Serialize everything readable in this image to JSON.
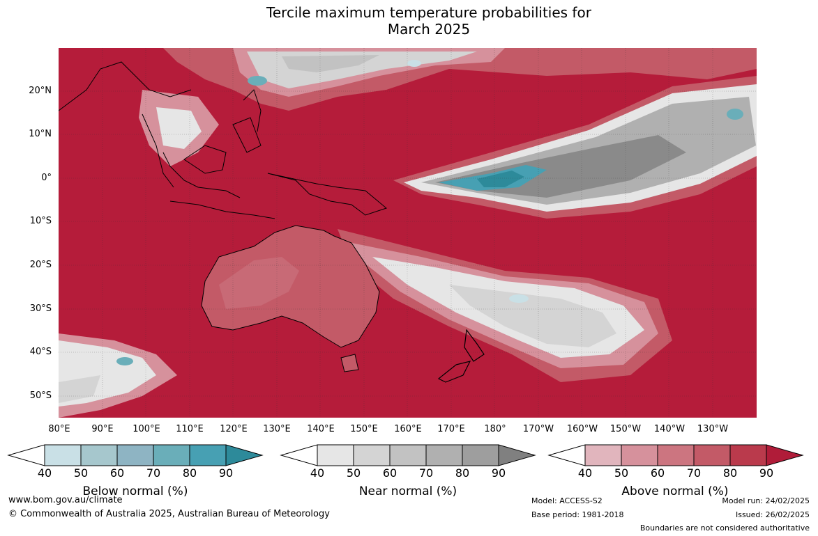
{
  "title_line1": "Tercile maximum temperature probabilities for",
  "title_line2": "March 2025",
  "lat_labels": [
    "20°N",
    "10°N",
    "0°",
    "10°S",
    "20°S",
    "30°S",
    "40°S",
    "50°S"
  ],
  "lon_labels": [
    "80°E",
    "90°E",
    "100°E",
    "110°E",
    "120°E",
    "130°E",
    "140°E",
    "150°E",
    "160°E",
    "170°E",
    "180°",
    "170°W",
    "160°W",
    "150°W",
    "140°W",
    "130°W"
  ],
  "colorbars": [
    {
      "title": "Below normal (%)",
      "ticks": [
        "40",
        "50",
        "60",
        "70",
        "80",
        "90"
      ],
      "colors": [
        "#ffffff",
        "#c9e0e6",
        "#a6c7cd",
        "#8eb4c3",
        "#6aaeb9",
        "#47a0b3",
        "#2d8a9a"
      ]
    },
    {
      "title": "Near normal (%)",
      "ticks": [
        "40",
        "50",
        "60",
        "70",
        "80",
        "90"
      ],
      "colors": [
        "#ffffff",
        "#e6e6e6",
        "#d4d4d4",
        "#c2c2c2",
        "#b0b0b0",
        "#9e9e9e",
        "#808080"
      ]
    },
    {
      "title": "Above normal (%)",
      "ticks": [
        "40",
        "50",
        "60",
        "70",
        "80",
        "90"
      ],
      "colors": [
        "#ffffff",
        "#e1b5bd",
        "#d6919c",
        "#cc7580",
        "#c35a67",
        "#ba3a4c",
        "#b01c39"
      ]
    }
  ],
  "footer": {
    "website": "www.bom.gov.au/climate",
    "copyright": "© Commonwealth of Australia 2025, Australian Bureau of Meteorology",
    "model": "Model: ACCESS-S2",
    "base_period": "Base period: 1981-2018",
    "model_run": "Model run: 24/02/2025",
    "issued": "Issued: 26/02/2025",
    "disclaimer": "Boundaries are not considered authoritative"
  },
  "colors": {
    "above_dark": "#b51c3a",
    "near_mid": "#8a8a8a",
    "below_teal": "#3a98a8"
  }
}
